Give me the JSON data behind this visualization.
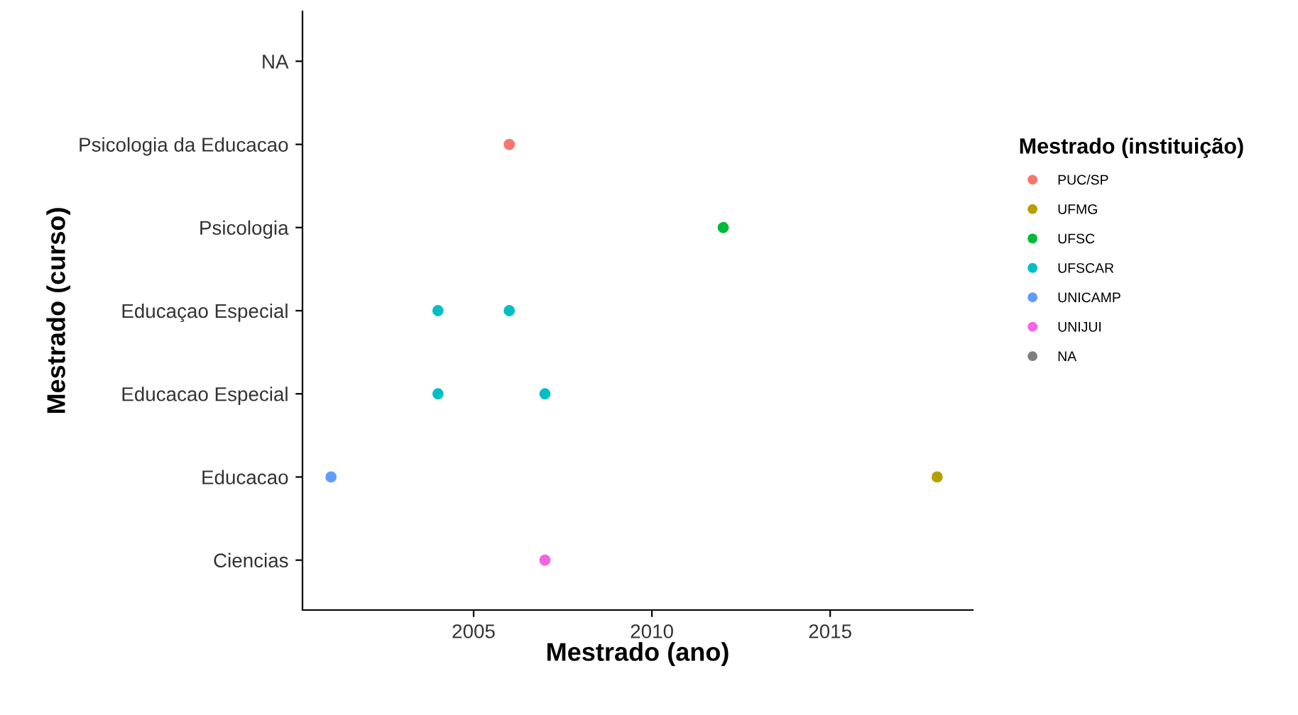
{
  "chart_data": {
    "type": "scatter",
    "orientation": "horizontal",
    "xlabel": "Mestrado (ano)",
    "ylabel": "Mestrado (curso)",
    "legend_title": "Mestrado (instituição)",
    "legend": "right",
    "grid": false,
    "marker": "circle",
    "categories": [
      "NA",
      "Psicologia da Educacao",
      "Psicologia",
      "Educaçao Especial",
      "Educacao Especial",
      "Educacao",
      "Ciencias"
    ],
    "xlim": [
      2000.2,
      2019
    ],
    "xticks": [
      2005,
      2010,
      2015
    ],
    "series": [
      {
        "name": "PUC/SP",
        "color": "#f8766d",
        "values": [
          null,
          2006,
          null,
          null,
          null,
          null,
          null
        ]
      },
      {
        "name": "UFMG",
        "color": "#b79f00",
        "values": [
          null,
          null,
          null,
          null,
          null,
          2018,
          null
        ]
      },
      {
        "name": "UFSC",
        "color": "#00ba38",
        "values": [
          null,
          null,
          2012,
          null,
          null,
          null,
          null
        ]
      },
      {
        "name": "UFSCAR",
        "color": "#00bfc4",
        "values": [
          null,
          null,
          null,
          2004,
          2004,
          null,
          null
        ]
      },
      {
        "color": "#00bfc4",
        "values": [
          null,
          null,
          null,
          2006,
          2007,
          null,
          null
        ]
      },
      {
        "name": "UNICAMP",
        "color": "#619cff",
        "values": [
          null,
          null,
          null,
          null,
          null,
          2001,
          null
        ]
      },
      {
        "name": "UNIJUI",
        "color": "#f564e3",
        "values": [
          null,
          null,
          null,
          null,
          null,
          null,
          2007
        ]
      },
      {
        "name": "NA",
        "color": "#7f7f7f",
        "values": [
          null,
          null,
          null,
          null,
          null,
          null,
          null
        ]
      }
    ]
  }
}
